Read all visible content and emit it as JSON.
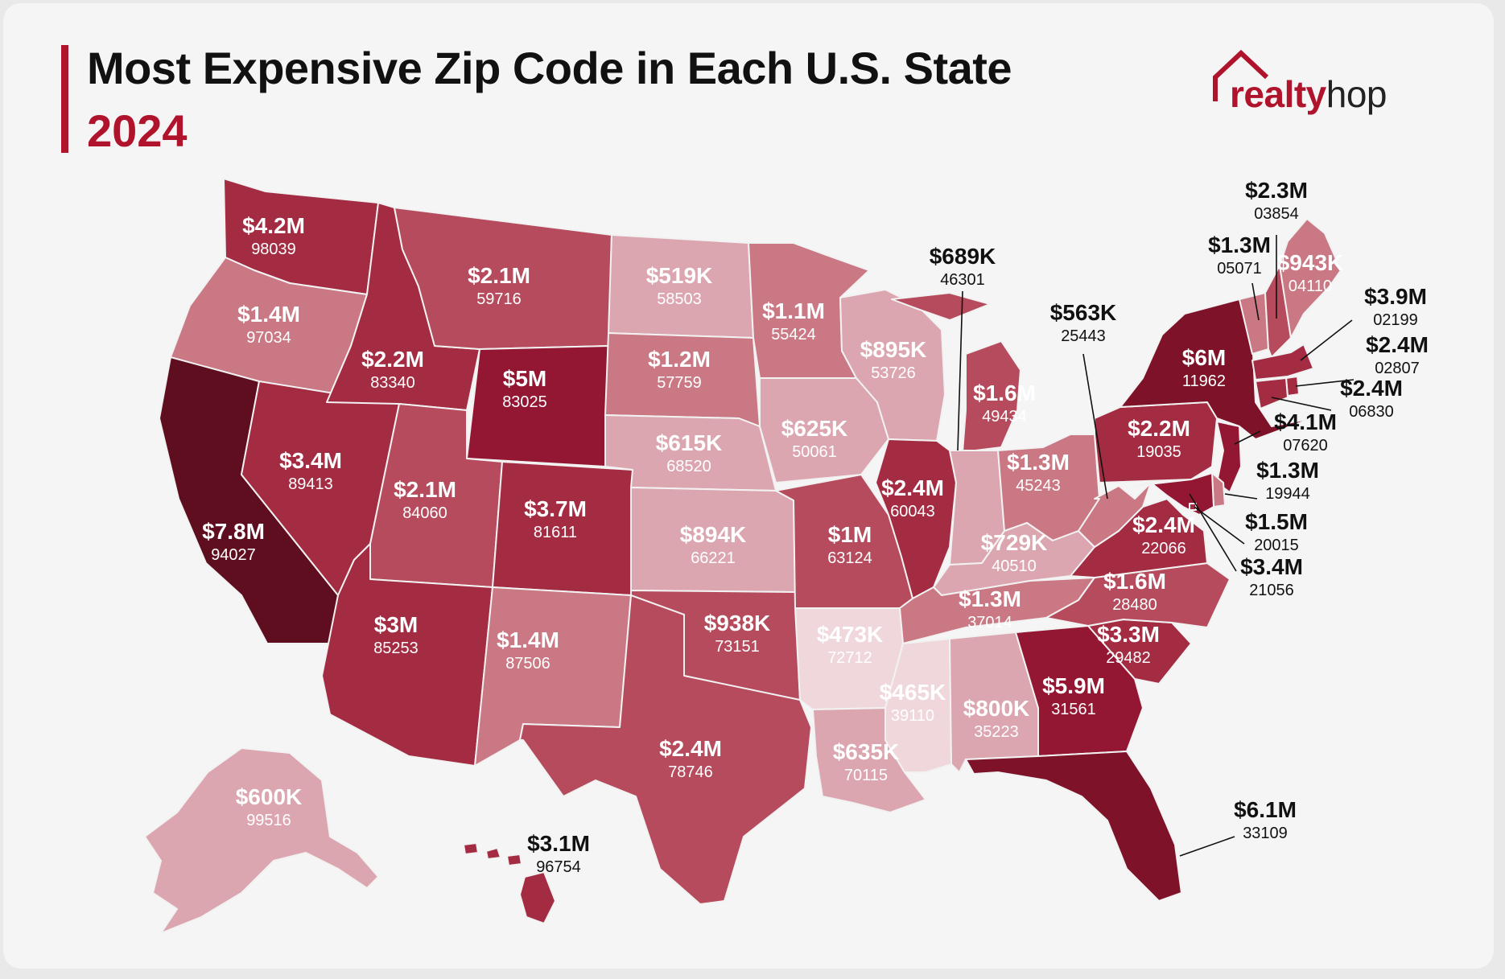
{
  "header": {
    "title": "Most Expensive Zip Code in Each U.S. State",
    "year": "2024"
  },
  "logo": {
    "part1": "realty",
    "part2": "hop"
  },
  "colors": {
    "accent": "#b0142c",
    "scale": [
      "#f0d7dc",
      "#dca6b0",
      "#c97884",
      "#b54b5d",
      "#a32b42",
      "#931733",
      "#7d1229",
      "#5e0e1e"
    ]
  },
  "states": {
    "WA": {
      "price": "$4.2M",
      "zip": "98039"
    },
    "OR": {
      "price": "$1.4M",
      "zip": "97034"
    },
    "CA": {
      "price": "$7.8M",
      "zip": "94027"
    },
    "NV": {
      "price": "$3.4M",
      "zip": "89413"
    },
    "ID": {
      "price": "$2.2M",
      "zip": "83340"
    },
    "MT": {
      "price": "$2.1M",
      "zip": "59716"
    },
    "WY": {
      "price": "$5M",
      "zip": "83025"
    },
    "UT": {
      "price": "$2.1M",
      "zip": "84060"
    },
    "CO": {
      "price": "$3.7M",
      "zip": "81611"
    },
    "AZ": {
      "price": "$3M",
      "zip": "85253"
    },
    "NM": {
      "price": "$1.4M",
      "zip": "87506"
    },
    "ND": {
      "price": "$519K",
      "zip": "58503"
    },
    "SD": {
      "price": "$1.2M",
      "zip": "57759"
    },
    "NE": {
      "price": "$615K",
      "zip": "68520"
    },
    "KS": {
      "price": "$894K",
      "zip": "66221"
    },
    "OK": {
      "price": "$938K",
      "zip": "73151"
    },
    "TX": {
      "price": "$2.4M",
      "zip": "78746"
    },
    "MN": {
      "price": "$1.1M",
      "zip": "55424"
    },
    "IA": {
      "price": "$625K",
      "zip": "50061"
    },
    "MO": {
      "price": "$1M",
      "zip": "63124"
    },
    "AR": {
      "price": "$473K",
      "zip": "72712"
    },
    "LA": {
      "price": "$635K",
      "zip": "70115"
    },
    "WI": {
      "price": "$895K",
      "zip": "53726"
    },
    "IL": {
      "price": "$2.4M",
      "zip": "60043"
    },
    "MI": {
      "price": "$1.6M",
      "zip": "49434"
    },
    "IN": {
      "price": "$689K",
      "zip": "46301"
    },
    "OH": {
      "price": "$1.3M",
      "zip": "45243"
    },
    "KY": {
      "price": "$729K",
      "zip": "40510"
    },
    "TN": {
      "price": "$1.3M",
      "zip": "37014"
    },
    "MS": {
      "price": "$465K",
      "zip": "39110"
    },
    "AL": {
      "price": "$800K",
      "zip": "35223"
    },
    "GA": {
      "price": "$5.9M",
      "zip": "31561"
    },
    "FL": {
      "price": "$6.1M",
      "zip": "33109"
    },
    "SC": {
      "price": "$3.3M",
      "zip": "29482"
    },
    "NC": {
      "price": "$1.6M",
      "zip": "28480"
    },
    "VA": {
      "price": "$2.4M",
      "zip": "22066"
    },
    "WV": {
      "price": "$563K",
      "zip": "25443"
    },
    "PA": {
      "price": "$2.2M",
      "zip": "19035"
    },
    "NY": {
      "price": "$6M",
      "zip": "11962"
    },
    "VT": {
      "price": "$1.3M",
      "zip": "05071"
    },
    "NH": {
      "price": "$2.3M",
      "zip": "03854"
    },
    "ME": {
      "price": "$943K",
      "zip": "04110"
    },
    "MA": {
      "price": "$3.9M",
      "zip": "02199"
    },
    "RI": {
      "price": "$2.4M",
      "zip": "02807"
    },
    "CT": {
      "price": "$2.4M",
      "zip": "06830"
    },
    "NJ": {
      "price": "$4.1M",
      "zip": "07620"
    },
    "DE": {
      "price": "$1.3M",
      "zip": "19944"
    },
    "DC": {
      "price": "$1.5M",
      "zip": "20015"
    },
    "MD": {
      "price": "$3.4M",
      "zip": "21056"
    },
    "AK": {
      "price": "$600K",
      "zip": "99516"
    },
    "HI": {
      "price": "$3.1M",
      "zip": "96754"
    }
  }
}
